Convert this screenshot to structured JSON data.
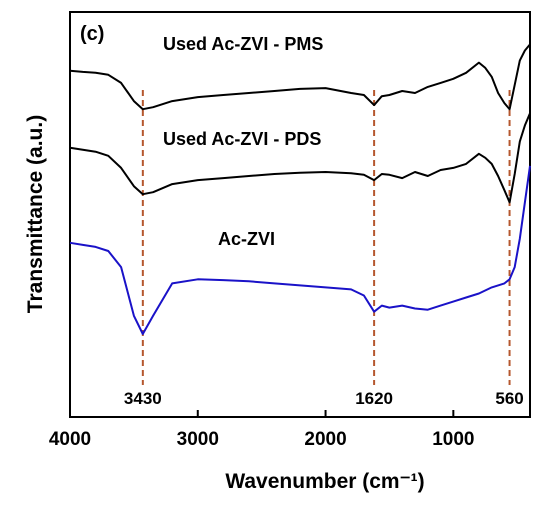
{
  "chart_data": {
    "type": "line",
    "panel_label": "(c)",
    "xlabel": "Wavenumber (cm⁻¹)",
    "ylabel": "Transmittance (a.u.)",
    "xlim": [
      4000,
      400
    ],
    "x_reversed": true,
    "x_ticks": [
      4000,
      3000,
      2000,
      1000
    ],
    "y_ticks": [],
    "peak_markers": [
      {
        "x": 3430,
        "label": "3430",
        "color": "#b5572e"
      },
      {
        "x": 1620,
        "label": "1620",
        "color": "#b5572e"
      },
      {
        "x": 560,
        "label": "560",
        "color": "#b5572e"
      }
    ],
    "series": [
      {
        "name": "Used Ac-ZVI - PMS",
        "color": "#000000",
        "x": [
          4000,
          3900,
          3800,
          3700,
          3600,
          3500,
          3430,
          3350,
          3200,
          3000,
          2800,
          2600,
          2400,
          2200,
          2000,
          1800,
          1700,
          1620,
          1560,
          1500,
          1400,
          1300,
          1200,
          1100,
          1000,
          900,
          800,
          750,
          700,
          650,
          600,
          560,
          520,
          480,
          440,
          400
        ],
        "y": [
          0.855,
          0.852,
          0.85,
          0.845,
          0.825,
          0.78,
          0.76,
          0.765,
          0.78,
          0.79,
          0.795,
          0.8,
          0.805,
          0.81,
          0.812,
          0.8,
          0.795,
          0.77,
          0.792,
          0.795,
          0.805,
          0.8,
          0.815,
          0.825,
          0.835,
          0.85,
          0.875,
          0.862,
          0.84,
          0.8,
          0.775,
          0.76,
          0.82,
          0.88,
          0.905,
          0.92
        ]
      },
      {
        "name": "Used Ac-ZVI - PDS",
        "color": "#000000",
        "x": [
          4000,
          3900,
          3800,
          3700,
          3600,
          3500,
          3430,
          3350,
          3200,
          3000,
          2800,
          2600,
          2400,
          2200,
          2000,
          1800,
          1700,
          1620,
          1560,
          1500,
          1400,
          1300,
          1200,
          1100,
          1000,
          900,
          800,
          750,
          700,
          650,
          600,
          560,
          520,
          480,
          440,
          400
        ],
        "y": [
          0.665,
          0.66,
          0.655,
          0.645,
          0.615,
          0.57,
          0.55,
          0.555,
          0.575,
          0.585,
          0.59,
          0.595,
          0.6,
          0.603,
          0.605,
          0.602,
          0.598,
          0.585,
          0.6,
          0.598,
          0.59,
          0.605,
          0.595,
          0.61,
          0.615,
          0.625,
          0.65,
          0.64,
          0.625,
          0.595,
          0.56,
          0.53,
          0.6,
          0.68,
          0.72,
          0.75
        ]
      },
      {
        "name": "Ac-ZVI",
        "color": "#1a12c8",
        "x": [
          4000,
          3900,
          3800,
          3700,
          3600,
          3500,
          3430,
          3350,
          3200,
          3000,
          2800,
          2600,
          2400,
          2200,
          2000,
          1800,
          1700,
          1620,
          1560,
          1500,
          1400,
          1300,
          1200,
          1100,
          1000,
          900,
          800,
          700,
          600,
          560,
          520,
          480,
          440,
          400
        ],
        "y": [
          0.43,
          0.425,
          0.42,
          0.41,
          0.37,
          0.25,
          0.205,
          0.25,
          0.33,
          0.34,
          0.338,
          0.335,
          0.33,
          0.325,
          0.32,
          0.315,
          0.3,
          0.26,
          0.275,
          0.27,
          0.275,
          0.268,
          0.265,
          0.275,
          0.285,
          0.295,
          0.305,
          0.32,
          0.33,
          0.34,
          0.37,
          0.44,
          0.53,
          0.62
        ]
      }
    ]
  }
}
